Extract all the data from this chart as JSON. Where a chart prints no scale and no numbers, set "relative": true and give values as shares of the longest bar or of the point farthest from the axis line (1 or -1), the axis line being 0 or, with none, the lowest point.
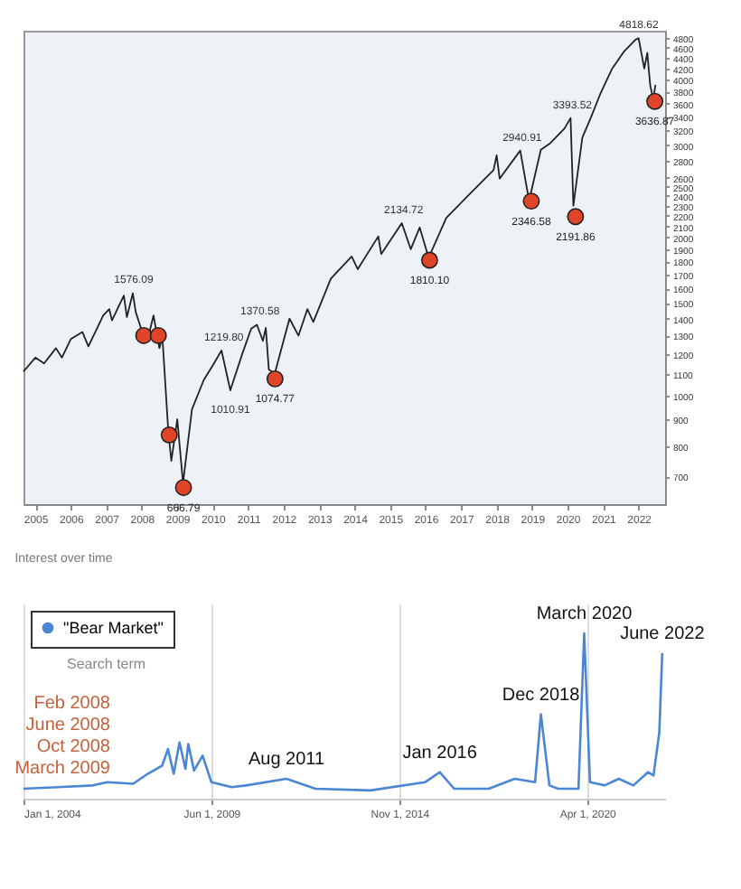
{
  "chart_data": [
    {
      "type": "line",
      "log": "y",
      "xlim": [
        "2004-09-01",
        "2022-10-01"
      ],
      "ylim": [
        620,
        4960
      ],
      "xticks": [
        "2005",
        "2006",
        "2007",
        "2008",
        "2009",
        "2010",
        "2011",
        "2012",
        "2013",
        "2014",
        "2015",
        "2016",
        "2017",
        "2018",
        "2019",
        "2020",
        "2021",
        "2022"
      ],
      "yticks": [
        700,
        800,
        900,
        1000,
        1100,
        1200,
        1300,
        1400,
        1500,
        1600,
        1700,
        1800,
        1900,
        2000,
        2100,
        2200,
        2300,
        2400,
        2500,
        2600,
        2800,
        3000,
        3200,
        3400,
        3600,
        3800,
        4000,
        4200,
        4400,
        4600,
        4800
      ],
      "series": [
        {
          "type": "line",
          "color": "#222222",
          "x": [
            "2004-09",
            "2005-01",
            "2005-04",
            "2005-08",
            "2005-10",
            "2006-01",
            "2006-05",
            "2006-07",
            "2006-12",
            "2007-02",
            "2007-03",
            "2007-07",
            "2007-08",
            "2007-10",
            "2007-11",
            "2008-01",
            "2008-03",
            "2008-05",
            "2008-07",
            "2008-08",
            "2008-10",
            "2008-11",
            "2009-01",
            "2009-03",
            "2009-06",
            "2009-10",
            "2010-01",
            "2010-04",
            "2010-07",
            "2010-11",
            "2011-02",
            "2011-04",
            "2011-06",
            "2011-07",
            "2011-08",
            "2011-10",
            "2012-03",
            "2012-06",
            "2012-09",
            "2012-11",
            "2013-05",
            "2013-12",
            "2014-02",
            "2014-09",
            "2014-10",
            "2015-05",
            "2015-08",
            "2015-11",
            "2016-02",
            "2016-08",
            "2017-03",
            "2017-12",
            "2018-01",
            "2018-02",
            "2018-09",
            "2018-12",
            "2019-04",
            "2019-07",
            "2019-12",
            "2020-02",
            "2020-03",
            "2020-06",
            "2020-09",
            "2020-12",
            "2021-04",
            "2021-08",
            "2021-12",
            "2022-01",
            "2022-03",
            "2022-04",
            "2022-05",
            "2022-06",
            "2022-06-24"
          ],
          "values": [
            1110,
            1180,
            1150,
            1230,
            1180,
            1280,
            1320,
            1240,
            1420,
            1460,
            1390,
            1550,
            1410,
            1565,
            1440,
            1330,
            1275,
            1420,
            1230,
            1290,
            850,
            750,
            900,
            680,
            940,
            1070,
            1140,
            1217,
            1022,
            1200,
            1340,
            1363,
            1270,
            1345,
            1120,
            1100,
            1400,
            1300,
            1460,
            1380,
            1670,
            1840,
            1740,
            2010,
            1860,
            2130,
            1900,
            2090,
            1830,
            2180,
            2390,
            2690,
            2870,
            2590,
            2930,
            2350,
            2940,
            3020,
            3230,
            3380,
            2300,
            3100,
            3400,
            3750,
            4190,
            4520,
            4770,
            4800,
            4200,
            4500,
            3900,
            3670,
            3910
          ]
        },
        {
          "type": "scatter",
          "color": "#e0452a",
          "x": [
            "2008-01-22",
            "2008-06-20",
            "2008-10-10",
            "2009-03-06",
            "2011-10-04",
            "2016-02-11",
            "2018-12-24",
            "2020-03-23",
            "2022-06-17"
          ],
          "values": [
            1300,
            1300,
            840,
            666.79,
            1074.77,
            1810.1,
            2346.58,
            2191.86,
            3636.87
          ],
          "value_labels": [
            null,
            null,
            null,
            "666.79",
            "1074.77",
            "1810.10",
            "2346.58",
            "2191.86",
            "3636.87"
          ]
        }
      ],
      "annotations": [
        {
          "text": "1576.09",
          "x": "2007-10-11",
          "y": 1576.09
        },
        {
          "text": "1219.80",
          "x": "2010-04-26",
          "y": 1219.8
        },
        {
          "text": "1010.91",
          "x": "2010-07-01",
          "y": 1010.91
        },
        {
          "text": "1370.58",
          "x": "2011-05-02",
          "y": 1370.58
        },
        {
          "text": "2134.72",
          "x": "2015-05-20",
          "y": 2134.72
        },
        {
          "text": "2940.91",
          "x": "2018-09-21",
          "y": 2940.91
        },
        {
          "text": "3393.52",
          "x": "2020-02-19",
          "y": 3393.52
        },
        {
          "text": "4818.62",
          "x": "2022-01-04",
          "y": 4818.62
        }
      ]
    },
    {
      "type": "line",
      "relative": true,
      "title": "Interest over time",
      "grid": "x",
      "legend": "top left",
      "xlim": [
        "2004-01-01",
        "2022-07-01"
      ],
      "xticks": [
        {
          "value": "2004-01-01",
          "label": "Jan 1, 2004"
        },
        {
          "value": "2009-06-01",
          "label": "Jun 1, 2009"
        },
        {
          "value": "2014-11-01",
          "label": "Nov 1, 2014"
        },
        {
          "value": "2020-04-01",
          "label": "Apr 1, 2020"
        }
      ],
      "series": [
        {
          "name": "\"Bear Market\"",
          "color": "#4a86d4",
          "x": [
            "2004-01",
            "2005-01",
            "2006-01",
            "2006-06",
            "2007-03",
            "2007-08",
            "2008-01",
            "2008-03",
            "2008-05",
            "2008-07",
            "2008-09",
            "2008-10",
            "2008-12",
            "2009-03",
            "2009-06",
            "2010-01",
            "2010-06",
            "2011-08",
            "2012-06",
            "2014-01",
            "2015-08",
            "2016-01",
            "2016-06",
            "2017-06",
            "2018-03",
            "2018-10",
            "2018-12",
            "2019-03",
            "2019-06",
            "2020-01",
            "2020-03",
            "2020-05",
            "2020-10",
            "2021-03",
            "2021-08",
            "2022-01",
            "2022-03",
            "2022-05",
            "2022-06"
          ],
          "values": [
            0.06,
            0.07,
            0.08,
            0.1,
            0.09,
            0.15,
            0.2,
            0.3,
            0.15,
            0.34,
            0.18,
            0.33,
            0.17,
            0.26,
            0.1,
            0.07,
            0.08,
            0.12,
            0.06,
            0.05,
            0.1,
            0.16,
            0.06,
            0.06,
            0.12,
            0.1,
            0.51,
            0.08,
            0.06,
            0.06,
            1,
            0.1,
            0.08,
            0.12,
            0.08,
            0.16,
            0.14,
            0.4,
            0.88
          ]
        }
      ],
      "annotations": [
        "Search term",
        "Feb 2008\nJune 2008\nOct 2008\nMarch 2009",
        {
          "text": "Aug 2011",
          "x": "2011-08",
          "y": 0.12
        },
        {
          "text": "Jan 2016",
          "x": "2016-01",
          "y": 0.16
        },
        {
          "text": "Dec 2018",
          "x": "2018-12",
          "y": 0.51
        },
        {
          "text": "March 2020",
          "x": "2020-03",
          "y": 1
        },
        {
          "text": "June 2022",
          "x": "2022-06",
          "y": 0.88
        }
      ]
    }
  ]
}
